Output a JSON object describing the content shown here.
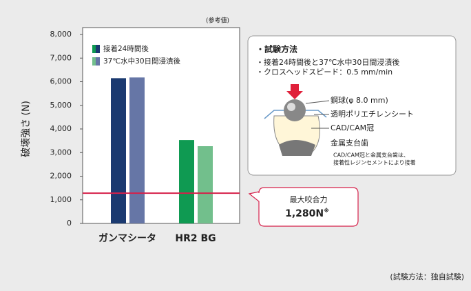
{
  "chart_data": {
    "type": "bar",
    "subtitle": "(参考値)",
    "y_label": "破壊強さ (N)",
    "categories": [
      "ガンマシータ",
      "HR2 BG"
    ],
    "series": [
      {
        "name": "接着24時間後",
        "colors": [
          "#1b3a70",
          "#0f9a52"
        ],
        "values": [
          6150,
          3530
        ]
      },
      {
        "name": "37℃水中30日間浸漬後",
        "colors": [
          "#6676a6",
          "#72bf8c"
        ],
        "values": [
          6180,
          3270
        ]
      }
    ],
    "ylim": [
      0,
      8000
    ],
    "yticks": [
      0,
      {
        "value": 1000,
        "label": "1,000"
      },
      {
        "value": 2000,
        "label": "2,000"
      },
      {
        "value": 3000,
        "label": "3,000"
      },
      {
        "value": 4000,
        "label": "4,000"
      },
      {
        "value": 5000,
        "label": "5,000"
      },
      {
        "value": 6000,
        "label": "6,000"
      },
      {
        "value": 7000,
        "label": "7,000"
      },
      {
        "value": 8000,
        "label": "8,000"
      }
    ],
    "reference_line": {
      "value": 1280,
      "name": "最大咬合力",
      "label": "1,280N",
      "note": "※",
      "color": "#d6204a"
    },
    "test_method": {
      "title": "・試験方法",
      "lines": [
        "・接着24時間後と37℃水中30日間浸漬後",
        "・クロスヘッドスピード：0.5 mm/min"
      ],
      "labels": [
        "鋼球(φ 8.0 mm)",
        "透明ポリエチレンシート",
        "CAD/CAM冠",
        "金属支台歯"
      ],
      "note_lines": [
        "CAD/CAM冠と金属支台歯は、",
        "接着性レジンセメントにより接着"
      ]
    },
    "footnote": "(試験方法：独自試験)"
  }
}
